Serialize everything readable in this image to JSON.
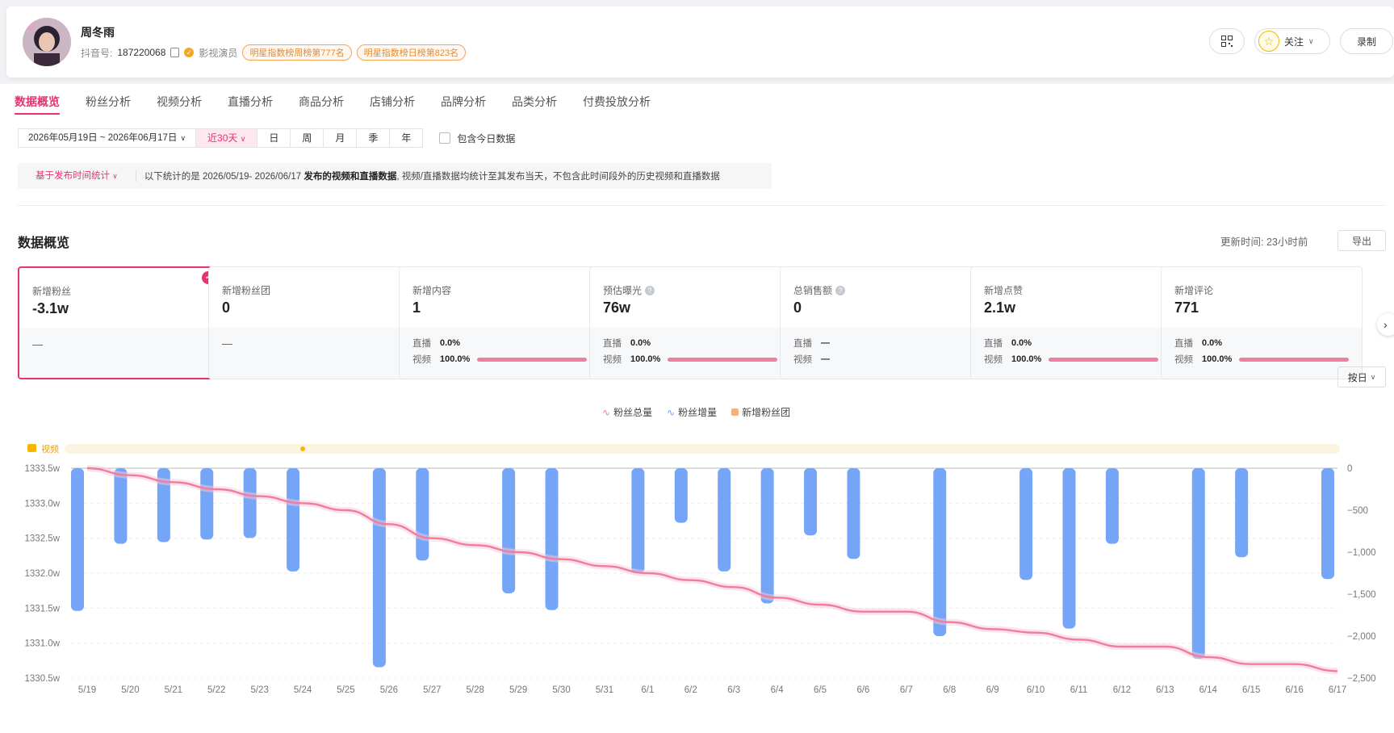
{
  "profile": {
    "name": "周冬雨",
    "douyin_label": "抖音号:",
    "douyin_id": "187220068",
    "role": "影视演员",
    "badges": [
      "明星指数榜周榜第777名",
      "明星指数榜日榜第823名"
    ],
    "follow_label": "关注",
    "record_label": "录制"
  },
  "tabs": [
    "数据概览",
    "粉丝分析",
    "视频分析",
    "直播分析",
    "商品分析",
    "店铺分析",
    "品牌分析",
    "品类分析",
    "付费投放分析"
  ],
  "filters": {
    "date_range": "2026年05月19日 ~ 2026年06月17日",
    "periods": [
      "近30天",
      "日",
      "周",
      "月",
      "季",
      "年"
    ],
    "include_today": "包含今日数据"
  },
  "notice": {
    "stat_basis": "基于发布时间统计",
    "prefix": "以下统计的是 2026/05/19- 2026/06/17",
    "bold": "发布的视频和直播数据",
    "suffix": ", 视频/直播数据均统计至其发布当天，不包含此时间段外的历史视频和直播数据"
  },
  "section": {
    "title": "数据概览",
    "update_time": "更新时间: 23小时前",
    "export_label": "导出",
    "granularity": "按日"
  },
  "cards": [
    {
      "label": "新增粉丝",
      "value": "-3.1w",
      "dash": "—",
      "active": true
    },
    {
      "label": "新增粉丝团",
      "value": "0",
      "dash": "—"
    },
    {
      "label": "新增内容",
      "value": "1",
      "live_label": "直播",
      "live_pct": "0.0%",
      "video_label": "视频",
      "video_pct": "100.0%",
      "video_share": 1.0
    },
    {
      "label": "预估曝光",
      "value": "76w",
      "help": true,
      "live_label": "直播",
      "live_pct": "0.0%",
      "video_label": "视频",
      "video_pct": "100.0%",
      "video_share": 1.0
    },
    {
      "label": "总销售额",
      "value": "0",
      "help": true,
      "live_label": "直播",
      "live_pct": "—",
      "video_label": "视频",
      "video_pct": "—"
    },
    {
      "label": "新增点赞",
      "value": "2.1w",
      "live_label": "直播",
      "live_pct": "0.0%",
      "video_label": "视频",
      "video_pct": "100.0%",
      "video_share": 1.0
    },
    {
      "label": "新增评论",
      "value": "771",
      "live_label": "直播",
      "live_pct": "0.0%",
      "video_label": "视频",
      "video_pct": "100.0%",
      "video_share": 1.0
    }
  ],
  "colors": {
    "accent": "#e8346b",
    "bar": "#74a5f7",
    "line": "#ef7da0",
    "fan_club": "#f5b07f"
  },
  "chart_data": {
    "type": "bar",
    "legend": [
      "粉丝总量",
      "粉丝增量",
      "新增粉丝团"
    ],
    "video_marker_label": "视频",
    "video_marker_date": "5/24",
    "categories": [
      "5/19",
      "5/20",
      "5/21",
      "5/22",
      "5/23",
      "5/24",
      "5/25",
      "5/26",
      "5/27",
      "5/28",
      "5/29",
      "5/30",
      "5/31",
      "6/1",
      "6/2",
      "6/3",
      "6/4",
      "6/5",
      "6/6",
      "6/7",
      "6/8",
      "6/9",
      "6/10",
      "6/11",
      "6/12",
      "6/13",
      "6/14",
      "6/15",
      "6/16",
      "6/17"
    ],
    "series": [
      {
        "name": "粉丝总量",
        "axis": "left",
        "values": [
          1333.5,
          1333.4,
          1333.3,
          1333.2,
          1333.1,
          1333.0,
          1332.9,
          1332.7,
          1332.5,
          1332.4,
          1332.3,
          1332.2,
          1332.1,
          1332.0,
          1331.9,
          1331.8,
          1331.65,
          1331.55,
          1331.45,
          1331.45,
          1331.3,
          1331.2,
          1331.15,
          1331.05,
          1330.95,
          1330.95,
          1330.8,
          1330.7,
          1330.7,
          1330.6
        ]
      },
      {
        "name": "粉丝增量",
        "axis": "right",
        "values": [
          -1700,
          -900,
          -880,
          -850,
          -830,
          -1230,
          0,
          -2370,
          -1100,
          0,
          -1490,
          -1690,
          0,
          -1250,
          -650,
          -1230,
          -1610,
          -800,
          -1080,
          0,
          -2000,
          0,
          -1330,
          -1910,
          -900,
          0,
          -2270,
          -1060,
          0,
          -1320
        ]
      }
    ],
    "y_left": {
      "ticks": [
        "1333.5w",
        "1333.0w",
        "1332.5w",
        "1332.0w",
        "1331.5w",
        "1331.0w",
        "1330.5w"
      ],
      "range": [
        1330.5,
        1333.5
      ]
    },
    "y_right": {
      "ticks": [
        "0",
        "−500",
        "−1,000",
        "−1,500",
        "−2,000",
        "−2,500"
      ],
      "range": [
        -2500,
        0
      ]
    }
  }
}
